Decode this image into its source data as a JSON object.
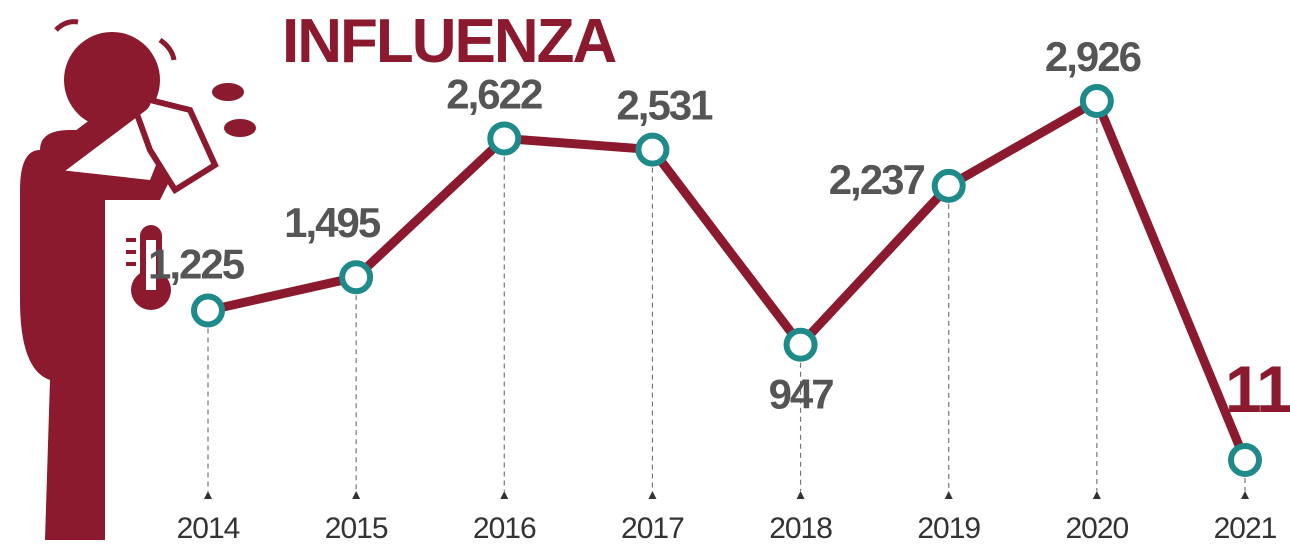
{
  "chart_data": {
    "type": "line",
    "title": "INFLUENZA",
    "categories": [
      "2014",
      "2015",
      "2016",
      "2017",
      "2018",
      "2019",
      "2020",
      "2021"
    ],
    "series": [
      {
        "color": "#8b1a2e",
        "values": [
          1225,
          1495,
          2622,
          2531,
          947,
          2237,
          2926,
          11
        ],
        "value_labels": [
          "1,225",
          "1,495",
          "2,622",
          "2,531",
          "947",
          "2,237",
          "2,926",
          "11"
        ]
      }
    ],
    "marker_color": "#1e8a8a"
  }
}
